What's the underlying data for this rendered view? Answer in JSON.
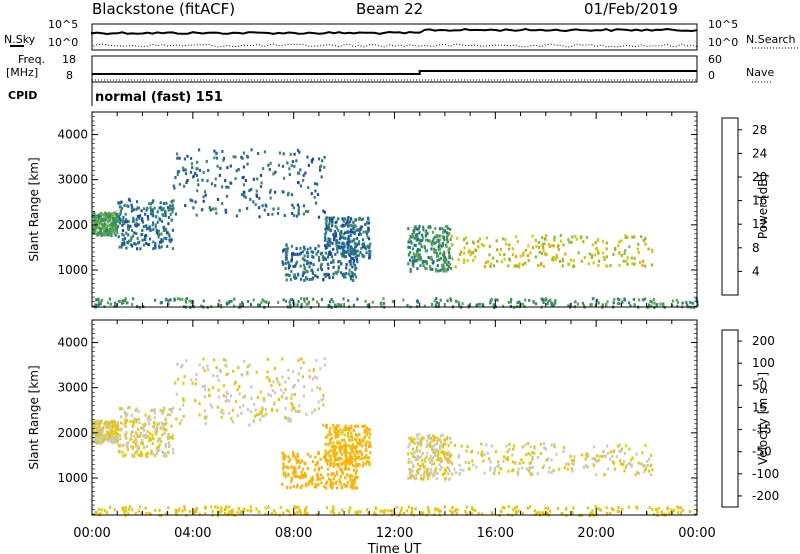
{
  "header": {
    "radar": "Blackstone (fitACF)",
    "beam": "Beam 22",
    "date": "01/Feb/2019"
  },
  "top_panel": {
    "left_label": "N.Sky",
    "right_label": "N.Search",
    "y_top": "10^5",
    "y_bottom": "10^0"
  },
  "freq_panel": {
    "left_label_1": "Freq.",
    "left_label_2": "[MHz]",
    "right_label": "Nave",
    "left_ticks": [
      "18",
      "8"
    ],
    "right_ticks": [
      "60",
      "0"
    ]
  },
  "cpid": {
    "label": "CPID",
    "text": "normal (fast) 151"
  },
  "x_axis": {
    "label": "Time UT",
    "ticks": [
      "00:00",
      "04:00",
      "08:00",
      "12:00",
      "16:00",
      "20:00",
      "00:00"
    ]
  },
  "chart_data": [
    {
      "type": "heatmap",
      "title": "Power",
      "ylabel": "Slant Range [km]",
      "xlabel": "",
      "x_range_hours": [
        0,
        24
      ],
      "ylim": [
        180,
        4500
      ],
      "y_ticks": [
        "1000",
        "2000",
        "3000",
        "4000"
      ],
      "colorbar": {
        "label": "Power [dB]",
        "ticks": [
          "4",
          "8",
          "12",
          "16",
          "20",
          "24",
          "28"
        ],
        "range": [
          0,
          30
        ],
        "colors": [
          "#1a1aff",
          "#2244aa",
          "#1f6e96",
          "#3b8c5c",
          "#5ca84a",
          "#8fbc2e",
          "#d8c800",
          "#ff9a00",
          "#ff6a00",
          "#ff2a00",
          "#e00000"
        ]
      },
      "regions": [
        {
          "name": "scatter-a",
          "t": [
            0.0,
            1.0
          ],
          "r": [
            1800,
            2300
          ],
          "value": 11
        },
        {
          "name": "scatter-b",
          "t": [
            1.0,
            3.2
          ],
          "r": [
            1500,
            2600
          ],
          "value": 7
        },
        {
          "name": "scatter-c",
          "t": [
            3.2,
            9.2
          ],
          "r": [
            2200,
            3700
          ],
          "value": 7
        },
        {
          "name": "scatter-d",
          "t": [
            9.2,
            11.0
          ],
          "r": [
            1300,
            2200
          ],
          "value": 7
        },
        {
          "name": "scatter-e",
          "t": [
            7.5,
            10.5
          ],
          "r": [
            800,
            1600
          ],
          "value": 7
        },
        {
          "name": "scatter-f",
          "t": [
            12.5,
            14.2
          ],
          "r": [
            1000,
            2000
          ],
          "value": 10
        },
        {
          "name": "main-echo",
          "t": [
            14.2,
            22.2
          ],
          "r": [
            1100,
            1800
          ],
          "value": 17
        },
        {
          "name": "ground-band",
          "t": [
            0.0,
            24.0
          ],
          "r": [
            200,
            400
          ],
          "value": 10
        }
      ]
    },
    {
      "type": "heatmap",
      "title": "Velocity",
      "ylabel": "Slant Range [km]",
      "xlabel": "Time UT",
      "x_range_hours": [
        0,
        24
      ],
      "ylim": [
        180,
        4500
      ],
      "y_ticks": [
        "1000",
        "2000",
        "3000",
        "4000"
      ],
      "colorbar": {
        "label": "Velocity [m s⁻¹]",
        "ticks": [
          "200",
          "100",
          "50",
          "15",
          "-15",
          "-50",
          "-100",
          "-200"
        ],
        "range": [
          -250,
          250
        ],
        "colors": [
          "#e00000",
          "#ff4a00",
          "#ff8a00",
          "#ffb000",
          "#e8c800",
          "#c8c8c8",
          "#8ad04a",
          "#3a9a3a",
          "#2a5aaa",
          "#1a2aff"
        ]
      },
      "regions": [
        {
          "name": "scatter-a",
          "t": [
            0.0,
            1.0
          ],
          "r": [
            1800,
            2300
          ],
          "value": 0
        },
        {
          "name": "scatter-b",
          "t": [
            1.0,
            3.2
          ],
          "r": [
            1500,
            2600
          ],
          "value": 0
        },
        {
          "name": "scatter-c",
          "t": [
            3.2,
            9.2
          ],
          "r": [
            2200,
            3700
          ],
          "value": 0
        },
        {
          "name": "scatter-d",
          "t": [
            9.2,
            11.0
          ],
          "r": [
            1300,
            2200
          ],
          "value": -60
        },
        {
          "name": "scatter-e",
          "t": [
            7.5,
            10.5
          ],
          "r": [
            800,
            1600
          ],
          "value": -80
        },
        {
          "name": "scatter-f",
          "t": [
            12.5,
            14.2
          ],
          "r": [
            1000,
            2000
          ],
          "value": 0
        },
        {
          "name": "main-echo",
          "t": [
            14.2,
            22.2
          ],
          "r": [
            1100,
            1800
          ],
          "value": 0
        },
        {
          "name": "ground-band",
          "t": [
            0.0,
            24.0
          ],
          "r": [
            200,
            400
          ],
          "value": -40
        }
      ]
    }
  ]
}
